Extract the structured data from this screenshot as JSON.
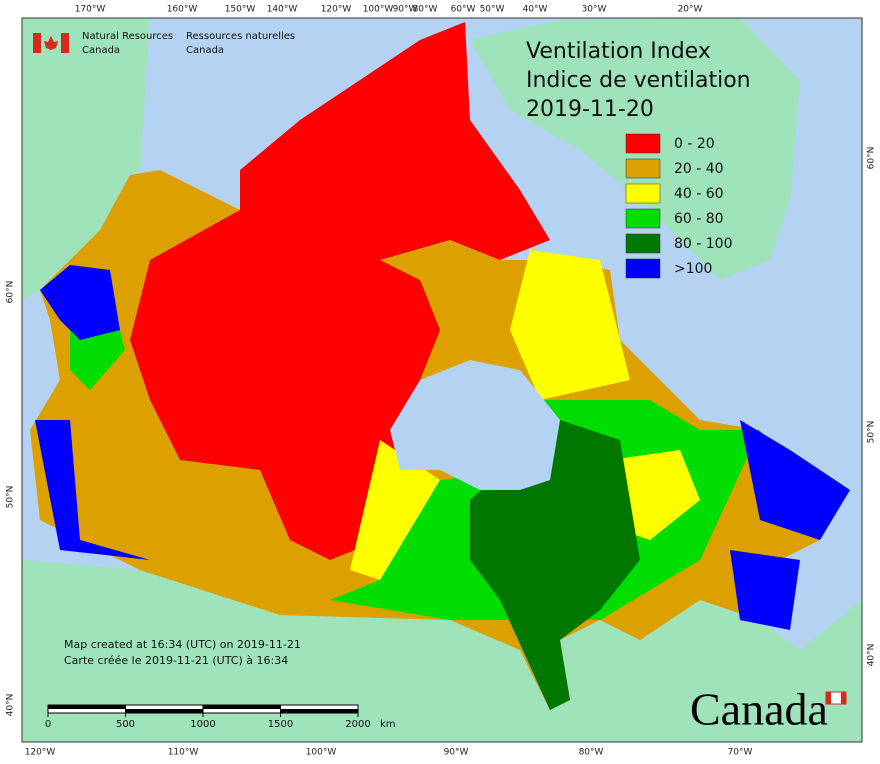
{
  "agency": {
    "en": {
      "line1": "Natural Resources",
      "line2": "Canada"
    },
    "fr": {
      "line1": "Ressources naturelles",
      "line2": "Canada"
    }
  },
  "title": {
    "en": "Ventilation Index",
    "fr": "Indice de ventilation",
    "date": "2019-11-20"
  },
  "legend": [
    {
      "label": "0 - 20",
      "color": "#ff0000"
    },
    {
      "label": "20 - 40",
      "color": "#dca000"
    },
    {
      "label": "40 - 60",
      "color": "#ffff00"
    },
    {
      "label": "60 - 80",
      "color": "#00dd00"
    },
    {
      "label": "80 - 100",
      "color": "#007800"
    },
    {
      "label": ">100",
      "color": "#0000ff"
    }
  ],
  "graticule": {
    "top": [
      "170°W",
      "160°W",
      "150°W",
      "140°W",
      "120°W",
      "100°W",
      "90°W",
      "80°W",
      "60°W",
      "50°W",
      "40°W",
      "30°W",
      "20°W"
    ],
    "bottom": [
      "120°W",
      "110°W",
      "100°W",
      "90°W",
      "80°W",
      "70°W"
    ],
    "left": [
      "60°N",
      "50°N",
      "40°N"
    ],
    "right": [
      "60°N",
      "50°N",
      "40°N"
    ]
  },
  "footer": {
    "created_en": "Map created at 16:34 (UTC) on 2019-11-21",
    "created_fr": "Carte créée le 2019-11-21 (UTC) à 16:34"
  },
  "scale_bar": {
    "ticks": [
      0,
      500,
      1000,
      1500,
      2000
    ],
    "unit": "km"
  },
  "wordmark": "Canada"
}
